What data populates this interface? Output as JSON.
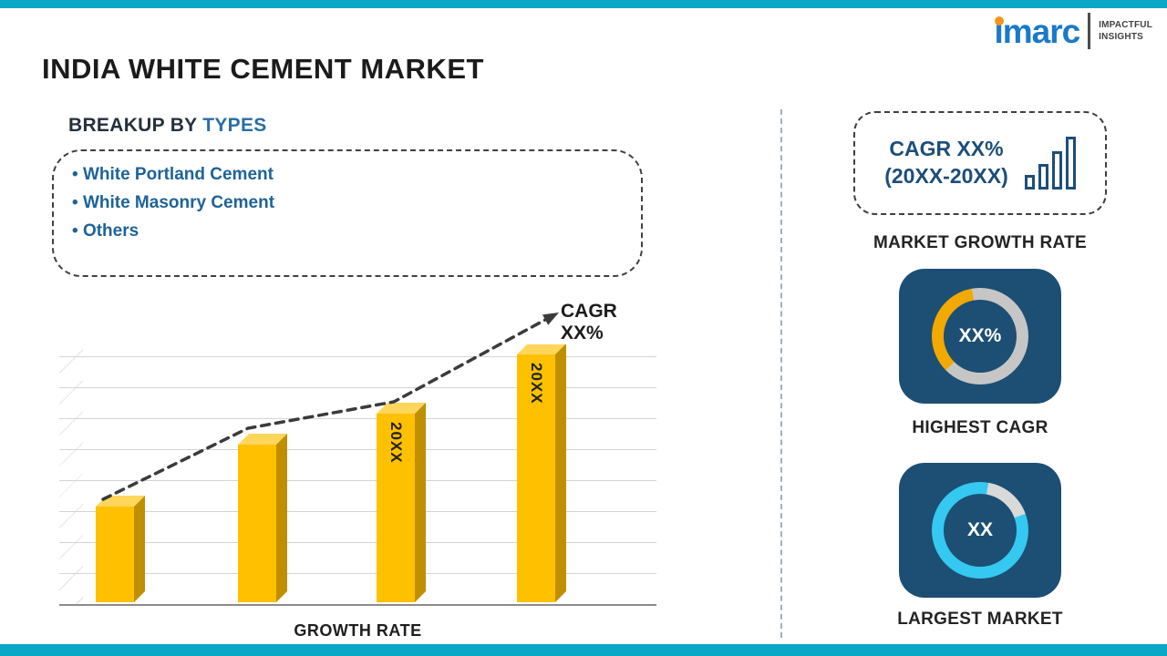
{
  "theme": {
    "accent": "#0ba7c6",
    "navy": "#1d4e74",
    "gold": "#ffc000",
    "gold-dark": "#bf8f00",
    "gold-light": "#ffd65c",
    "heading-blue": "#2a6da4",
    "list-blue": "#1e6397",
    "brand-blue": "#1a7ac9",
    "ring-orange": "#f2a900",
    "ring-cyan": "#35c8f0"
  },
  "logo": {
    "brand": "imarc",
    "tagline1": "IMPACTFUL",
    "tagline2": "INSIGHTS"
  },
  "header": {
    "title": "INDIA WHITE CEMENT MARKET"
  },
  "breakup": {
    "heading_prefix": "BREAKUP BY",
    "heading_highlight": "TYPES",
    "items": [
      "White Portland Cement",
      "White Masonry Cement",
      "Others"
    ]
  },
  "chart_data": {
    "type": "bar",
    "title": "",
    "xlabel": "GROWTH RATE",
    "ylabel": "",
    "categories": [
      "",
      "",
      "20XX",
      "20XX"
    ],
    "values": [
      31,
      51,
      61,
      80
    ],
    "ylim": [
      0,
      100
    ],
    "grid": "horizontal",
    "bar_color": "#ffc000",
    "trend_label": "CAGR XX%",
    "trend_style": "dashed-arrow-rising"
  },
  "sidebar": {
    "growth_box": {
      "line1": "CAGR XX%",
      "line2": "(20XX-20XX)"
    },
    "growth_caption": "MARKET GROWTH RATE",
    "highest_cagr": {
      "value": "XX%",
      "caption": "HIGHEST CAGR",
      "ring_colors": [
        "#c6c6c6",
        "#f2a900"
      ]
    },
    "largest_market": {
      "value": "XX",
      "caption": "LARGEST MARKET",
      "ring_colors": [
        "#35c8f0",
        "#d9d9d9"
      ]
    }
  }
}
